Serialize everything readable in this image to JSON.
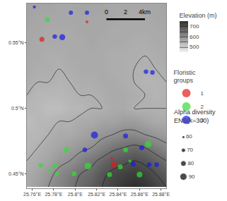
{
  "chart_data": {
    "type": "scatter",
    "xlim": [
      25.755,
      25.885
    ],
    "ylim": [
      0.439,
      0.58
    ],
    "xticks": [
      {
        "value": 25.76,
        "label": "25.76°E"
      },
      {
        "value": 25.78,
        "label": "25.78°E"
      },
      {
        "value": 25.8,
        "label": "25.8°E"
      },
      {
        "value": 25.82,
        "label": "25.82°E"
      },
      {
        "value": 25.84,
        "label": "25.84°E"
      },
      {
        "value": 25.86,
        "label": "25.86°E"
      },
      {
        "value": 25.88,
        "label": "25.88°E"
      }
    ],
    "yticks": [
      {
        "value": 0.45,
        "label": "0.45°N"
      },
      {
        "value": 0.5,
        "label": "0.5°N"
      },
      {
        "value": 0.55,
        "label": "0.55°N"
      }
    ],
    "grid": false,
    "group_legend_title": [
      "Floristic",
      "groups"
    ],
    "series": [
      {
        "name": "1",
        "color": "#e31a1c",
        "x": [
          25.811,
          25.769,
          25.834,
          25.836
        ],
        "y": [
          0.566,
          0.5527,
          0.4618,
          0.457
        ],
        "alpha_diversity": [
          60,
          75,
          60,
          82
        ]
      },
      {
        "name": "2",
        "color": "#33dd33",
        "x": [
          25.774,
          25.847,
          25.868,
          25.792,
          25.768,
          25.781,
          25.776,
          25.783,
          25.812,
          25.799,
          25.842,
          25.851,
          25.86,
          25.832
        ],
        "y": [
          0.5677,
          0.4683,
          0.4726,
          0.4683,
          0.4565,
          0.4565,
          0.4522,
          0.45,
          0.456,
          0.45,
          0.4554,
          0.4597,
          0.4495,
          0.4495
        ],
        "alpha_diversity": [
          75,
          75,
          88,
          78,
          72,
          75,
          62,
          70,
          88,
          75,
          75,
          62,
          80,
          75
        ]
      },
      {
        "name": "3",
        "color": "#1a1ae6",
        "x": [
          25.762,
          25.796,
          25.811,
          25.781,
          25.788,
          25.866,
          25.872,
          25.818,
          25.847,
          25.862,
          25.809,
          25.854,
          25.869,
          25.876
        ],
        "y": [
          0.5774,
          0.573,
          0.573,
          0.5548,
          0.5543,
          0.528,
          0.5274,
          0.4796,
          0.479,
          0.47,
          0.4683,
          0.4575,
          0.457,
          0.457
        ],
        "alpha_diversity": [
          62,
          70,
          70,
          72,
          82,
          72,
          72,
          90,
          75,
          75,
          72,
          75,
          72,
          72
        ]
      }
    ],
    "size_legend": {
      "title": [
        "Alpha diversity",
        "ENS(k=300)"
      ],
      "values": [
        60,
        70,
        80,
        90
      ]
    },
    "elevation": {
      "title": "Elevation (m)",
      "zlim": [
        450,
        750
      ],
      "ticks": [
        500,
        600,
        700
      ],
      "contour_levels": [
        500,
        550,
        600,
        650,
        700
      ],
      "x": [
        25.755,
        25.765,
        25.775,
        25.785,
        25.795,
        25.805,
        25.815,
        25.825,
        25.835,
        25.845,
        25.855,
        25.865,
        25.875,
        25.885
      ],
      "y": [
        0.44,
        0.45,
        0.46,
        0.47,
        0.48,
        0.49,
        0.5,
        0.51,
        0.52,
        0.53,
        0.54,
        0.55,
        0.56,
        0.57,
        0.58
      ],
      "z": [
        [
          560,
          580,
          600,
          620,
          640,
          660,
          680,
          700,
          720,
          740,
          750,
          740,
          720,
          700
        ],
        [
          560,
          570,
          590,
          610,
          630,
          650,
          660,
          690,
          710,
          720,
          730,
          720,
          700,
          680
        ],
        [
          550,
          560,
          570,
          590,
          600,
          620,
          640,
          660,
          680,
          690,
          700,
          690,
          670,
          650
        ],
        [
          540,
          550,
          560,
          570,
          580,
          590,
          600,
          620,
          640,
          650,
          660,
          650,
          630,
          610
        ],
        [
          540,
          540,
          550,
          560,
          560,
          570,
          580,
          590,
          600,
          610,
          610,
          600,
          590,
          580
        ],
        [
          530,
          540,
          540,
          550,
          550,
          560,
          560,
          570,
          570,
          580,
          580,
          570,
          560,
          560
        ],
        [
          540,
          540,
          530,
          530,
          540,
          540,
          550,
          550,
          560,
          560,
          550,
          550,
          550,
          550
        ],
        [
          550,
          540,
          540,
          540,
          545,
          550,
          550,
          555,
          560,
          560,
          555,
          550,
          545,
          550
        ],
        [
          555,
          550,
          550,
          545,
          550,
          555,
          555,
          560,
          560,
          555,
          550,
          545,
          545,
          550
        ],
        [
          560,
          555,
          555,
          550,
          555,
          560,
          560,
          560,
          555,
          555,
          550,
          550,
          550,
          555
        ],
        [
          560,
          560,
          555,
          555,
          560,
          560,
          560,
          560,
          555,
          555,
          555,
          550,
          555,
          560
        ],
        [
          565,
          560,
          560,
          560,
          560,
          560,
          565,
          560,
          560,
          560,
          555,
          555,
          560,
          560
        ],
        [
          565,
          565,
          560,
          560,
          560,
          565,
          565,
          565,
          560,
          560,
          560,
          560,
          560,
          565
        ],
        [
          570,
          565,
          565,
          565,
          565,
          565,
          565,
          565,
          565,
          560,
          560,
          560,
          565,
          565
        ],
        [
          570,
          570,
          570,
          565,
          565,
          570,
          570,
          570,
          565,
          565,
          565,
          565,
          565,
          570
        ]
      ]
    },
    "scale_bar": {
      "km": [
        0,
        2,
        4
      ],
      "labels": [
        "0",
        "2",
        "4km"
      ]
    }
  }
}
